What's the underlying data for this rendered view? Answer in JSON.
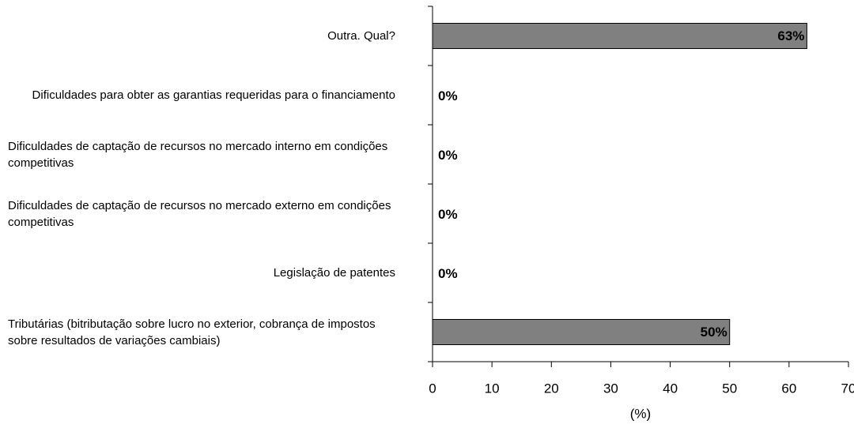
{
  "chart_data": {
    "type": "bar",
    "orientation": "horizontal",
    "categories": [
      "Outra.  Qual?",
      "Dificuldades para obter as garantias requeridas para o financiamento",
      "Dificuldades de captação de recursos no mercado interno  em condições competitivas",
      "Dificuldades de captação de recursos no mercado externo em condições competitivas",
      "Legislação de patentes",
      "Tributárias (bitributação sobre lucro no exterior,  cobrança  de impostos sobre resultados de variações cambiais)"
    ],
    "values": [
      63,
      0,
      0,
      0,
      0,
      50
    ],
    "value_labels": [
      "63%",
      "0%",
      "0%",
      "0%",
      "0%",
      "50%"
    ],
    "color": "#808080",
    "xlabel": "(%)",
    "xlim": [
      0,
      70
    ],
    "xticks": [
      0,
      10,
      20,
      30,
      40,
      50,
      60,
      70
    ]
  }
}
